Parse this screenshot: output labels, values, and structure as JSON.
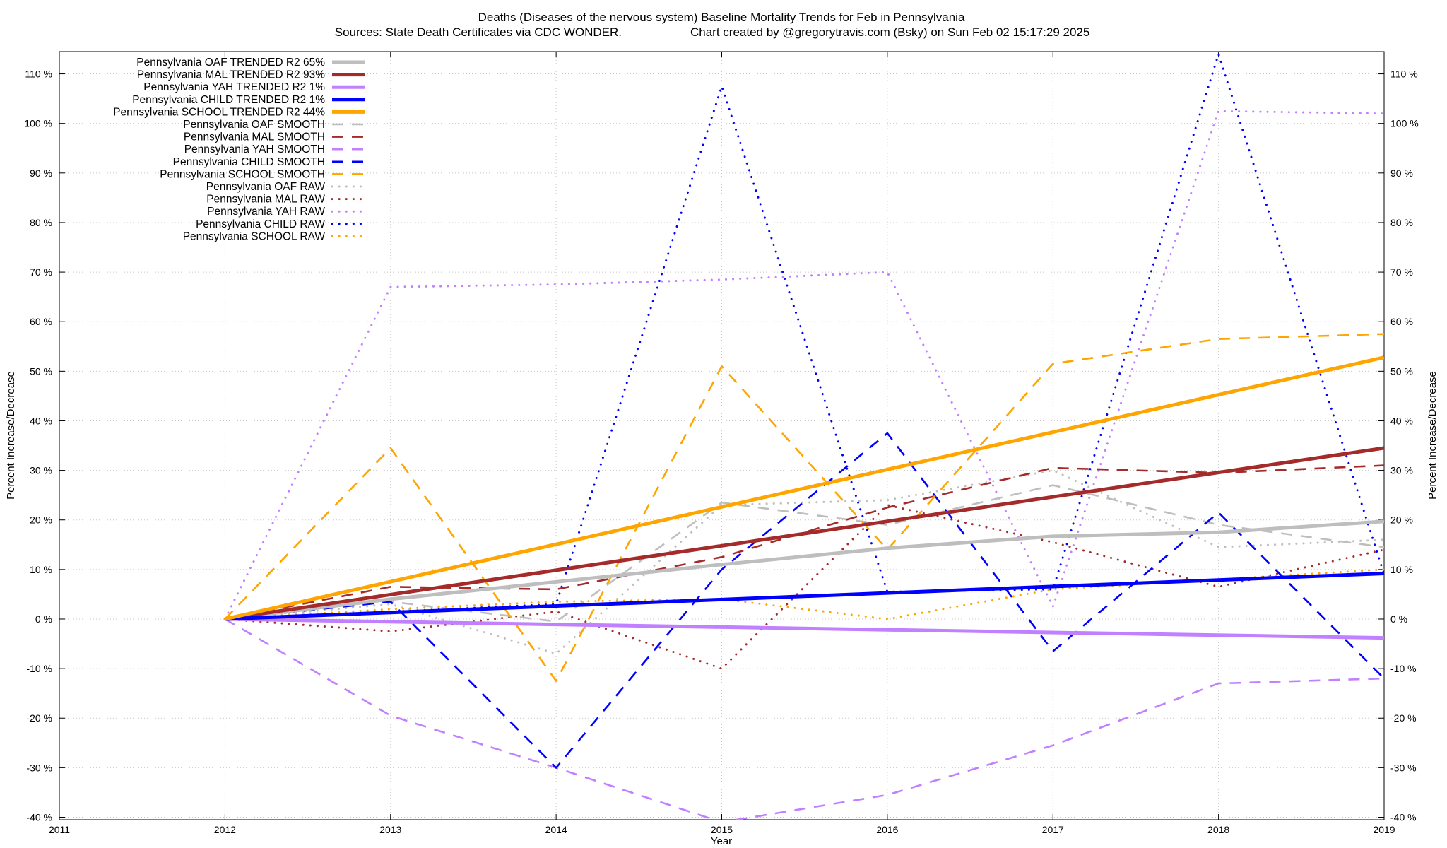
{
  "chart_data": {
    "type": "line",
    "title": "Deaths (Diseases of the nervous system)  Baseline Mortality Trends for Feb in Pennsylvania",
    "subtitle_left": "Sources: State Death Certificates via CDC WONDER.",
    "subtitle_right": "Chart created by @gregorytravis.com (Bsky) on Sun Feb 02 15:17:29 2025",
    "xlabel": "Year",
    "ylabel": "Percent Increase/Decrease",
    "y2label": "Percent Increase/Decrease",
    "xlim": [
      2011,
      2019
    ],
    "ylim": [
      -40,
      115
    ],
    "x_ticks": [
      2011,
      2012,
      2013,
      2014,
      2015,
      2016,
      2017,
      2018,
      2019
    ],
    "y_ticks": [
      -40,
      -30,
      -20,
      -10,
      0,
      10,
      20,
      30,
      40,
      50,
      60,
      70,
      80,
      90,
      100,
      110
    ],
    "y_tick_suffix": " %",
    "grid": true,
    "legend_position": "top-left",
    "series": [
      {
        "name": "Pennsylvania OAF TRENDED R2  65%",
        "color": "#bebebe",
        "style": "solid",
        "x": [
          2012,
          2013,
          2014,
          2015,
          2016,
          2017,
          2018,
          2019
        ],
        "values": [
          0,
          4.0,
          7.5,
          11.0,
          14.3,
          16.7,
          17.5,
          19.7
        ]
      },
      {
        "name": "Pennsylvania MAL TRENDED R2  93%",
        "color": "#a52a2a",
        "style": "solid",
        "x": [
          2012,
          2019
        ],
        "values": [
          0,
          34.5
        ]
      },
      {
        "name": "Pennsylvania YAH TRENDED R2   1%",
        "color": "#c080ff",
        "style": "solid",
        "x": [
          2012,
          2019
        ],
        "values": [
          0,
          -3.8
        ]
      },
      {
        "name": "Pennsylvania CHILD TRENDED R2   1%",
        "color": "#0000ff",
        "style": "solid",
        "x": [
          2012,
          2019
        ],
        "values": [
          0,
          9.2
        ]
      },
      {
        "name": "Pennsylvania SCHOOL TRENDED R2  44%",
        "color": "#ffa500",
        "style": "solid",
        "x": [
          2012,
          2019
        ],
        "values": [
          0,
          52.8
        ]
      },
      {
        "name": "Pennsylvania OAF SMOOTH",
        "color": "#bebebe",
        "style": "dashed",
        "x": [
          2012,
          2013,
          2014,
          2015,
          2016,
          2017,
          2018,
          2019
        ],
        "values": [
          0,
          3.5,
          -0.5,
          23.5,
          19.0,
          27.0,
          19.0,
          14.5
        ]
      },
      {
        "name": "Pennsylvania MAL SMOOTH",
        "color": "#a52a2a",
        "style": "dashed",
        "x": [
          2012,
          2013,
          2014,
          2015,
          2016,
          2017,
          2018,
          2019
        ],
        "values": [
          0,
          6.5,
          6.0,
          12.5,
          22.5,
          30.5,
          29.5,
          31.0
        ]
      },
      {
        "name": "Pennsylvania YAH SMOOTH",
        "color": "#c080ff",
        "style": "dashed",
        "x": [
          2012,
          2013,
          2014,
          2015,
          2016,
          2017,
          2018,
          2019
        ],
        "values": [
          0,
          -19.5,
          -30.0,
          -41.0,
          -35.5,
          -25.5,
          -13.0,
          -12.0
        ]
      },
      {
        "name": "Pennsylvania CHILD SMOOTH",
        "color": "#0000ff",
        "style": "dashed",
        "x": [
          2012,
          2013,
          2014,
          2015,
          2016,
          2017,
          2018,
          2019
        ],
        "values": [
          0,
          3.5,
          -30.0,
          10.0,
          37.5,
          -6.5,
          21.5,
          -12.0
        ]
      },
      {
        "name": "Pennsylvania SCHOOL SMOOTH",
        "color": "#ffa500",
        "style": "dashed",
        "x": [
          2012,
          2013,
          2014,
          2015,
          2016,
          2017,
          2018,
          2019
        ],
        "values": [
          0,
          34.5,
          -12.5,
          51.0,
          14.0,
          51.5,
          56.5,
          57.5
        ]
      },
      {
        "name": "Pennsylvania OAF RAW",
        "color": "#bebebe",
        "style": "dotted",
        "x": [
          2012,
          2013,
          2014,
          2015,
          2016,
          2017,
          2018,
          2019
        ],
        "values": [
          0,
          3.0,
          -7.0,
          23.0,
          24.0,
          30.0,
          14.5,
          16.0
        ]
      },
      {
        "name": "Pennsylvania MAL RAW",
        "color": "#a52a2a",
        "style": "dotted",
        "x": [
          2012,
          2013,
          2014,
          2015,
          2016,
          2017,
          2018,
          2019
        ],
        "values": [
          0,
          -2.5,
          1.5,
          -10.0,
          23.0,
          15.5,
          6.5,
          14.0
        ]
      },
      {
        "name": "Pennsylvania YAH RAW",
        "color": "#c080ff",
        "style": "dotted",
        "x": [
          2012,
          2013,
          2014,
          2015,
          2016,
          2017,
          2018,
          2019
        ],
        "values": [
          0,
          67.0,
          67.5,
          68.5,
          70.0,
          2.5,
          102.5,
          102.0
        ]
      },
      {
        "name": "Pennsylvania CHILD RAW",
        "color": "#0000ff",
        "style": "dotted",
        "x": [
          2012,
          2013,
          2014,
          2015,
          2016,
          2017,
          2018,
          2019
        ],
        "values": [
          0,
          1.5,
          3.0,
          107.5,
          5.5,
          6.0,
          114.0,
          9.0
        ]
      },
      {
        "name": "Pennsylvania SCHOOL RAW",
        "color": "#ffa500",
        "style": "dotted",
        "x": [
          2012,
          2013,
          2014,
          2015,
          2016,
          2017,
          2018,
          2019
        ],
        "values": [
          0,
          2.0,
          3.5,
          4.0,
          0.0,
          6.0,
          8.0,
          10.0
        ]
      }
    ]
  }
}
